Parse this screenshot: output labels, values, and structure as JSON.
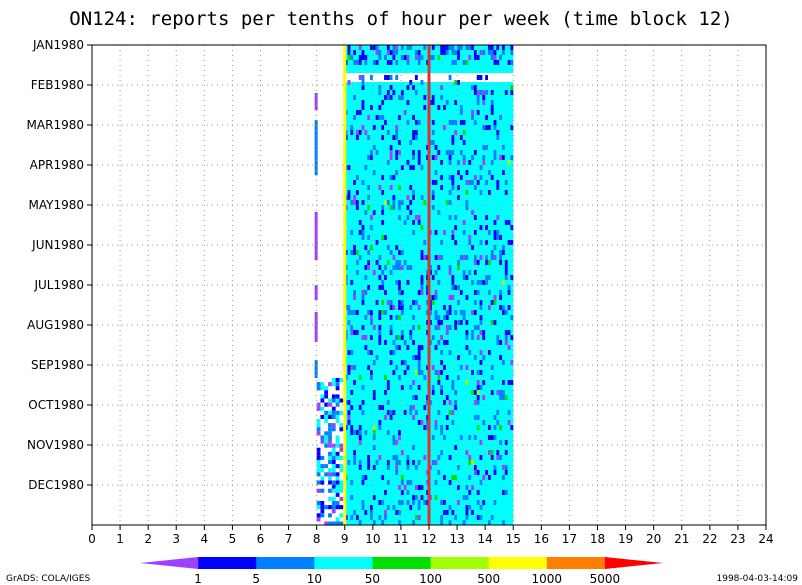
{
  "chart_data": {
    "type": "heatmap",
    "title": "ON124: reports per tenths of hour per week (time block 12)",
    "xlabel": "",
    "ylabel": "",
    "x_ticks": [
      "0",
      "1",
      "2",
      "3",
      "4",
      "5",
      "6",
      "7",
      "8",
      "9",
      "10",
      "11",
      "12",
      "13",
      "14",
      "15",
      "16",
      "17",
      "18",
      "19",
      "20",
      "21",
      "22",
      "23",
      "24"
    ],
    "xlim": [
      0,
      24
    ],
    "y_ticks": [
      "JAN1980",
      "FEB1980",
      "MAR1980",
      "APR1980",
      "MAY1980",
      "JUN1980",
      "JUL1980",
      "AUG1980",
      "SEP1980",
      "OCT1980",
      "NOV1980",
      "DEC1980"
    ],
    "grid": true,
    "data_extent": {
      "x_start": 8,
      "x_end": 15,
      "dominant_band": [
        9,
        15
      ]
    },
    "markers": [
      {
        "x": 9,
        "color": "#ffff00"
      },
      {
        "x": 12,
        "color": "#e03030"
      }
    ],
    "legend": {
      "placement": "bottom",
      "levels": [
        "1",
        "5",
        "10",
        "50",
        "100",
        "500",
        "1000",
        "5000"
      ],
      "colors": [
        "#a040ff",
        "#0000ff",
        "#0080ff",
        "#00ffff",
        "#00e000",
        "#a0ff00",
        "#ffff00",
        "#ff8000",
        "#ff0000"
      ]
    },
    "footer_left": "GrADS: COLA/IGES",
    "footer_right": "1998-04-03-14:09"
  }
}
